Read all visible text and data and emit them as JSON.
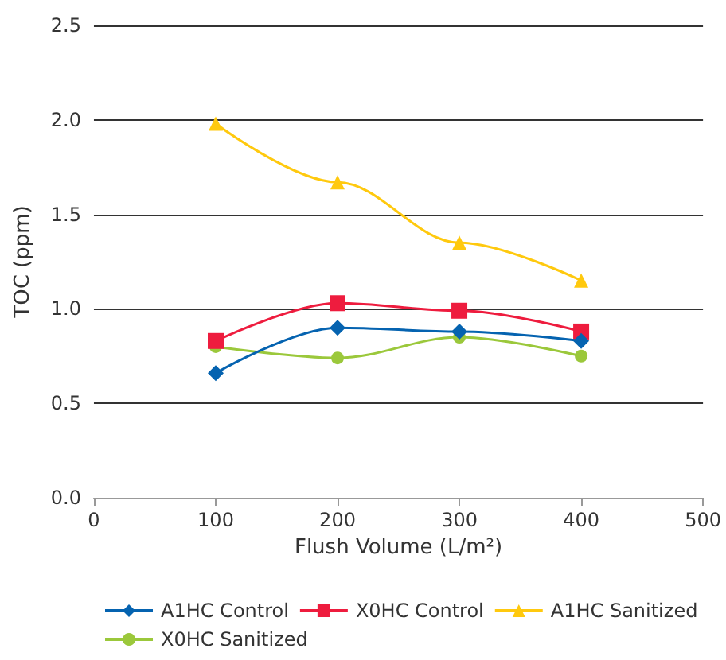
{
  "chart_data": {
    "type": "line",
    "xlabel": "Flush Volume (L/m²)",
    "ylabel": "TOC (ppm)",
    "x": [
      100,
      200,
      300,
      400
    ],
    "xlim": [
      0,
      500
    ],
    "xticks": [
      0,
      100,
      200,
      300,
      400,
      500
    ],
    "ylim": [
      0,
      2.5
    ],
    "yticks": [
      {
        "value": 0,
        "label": "0.0"
      },
      {
        "value": 0.5,
        "label": "0.5"
      },
      {
        "value": 1,
        "label": "1.0"
      },
      {
        "value": 1.5,
        "label": "1.5"
      },
      {
        "value": 2,
        "label": "2.0"
      },
      {
        "value": 2.5,
        "label": "2.5"
      }
    ],
    "grid": "y",
    "legend": "bottom",
    "series": [
      {
        "name": "A1HC Control",
        "color": "#0563b0",
        "marker": "diamond",
        "values": [
          0.66,
          0.9,
          0.88,
          0.83
        ]
      },
      {
        "name": "X0HC Control",
        "color": "#ee1c3e",
        "marker": "square",
        "values": [
          0.83,
          1.03,
          0.99,
          0.88
        ]
      },
      {
        "name": "A1HC Sanitized",
        "color": "#ffc90e",
        "marker": "triangle",
        "values": [
          1.98,
          1.67,
          1.35,
          1.15
        ]
      },
      {
        "name": "X0HC Sanitized",
        "color": "#9bc83b",
        "marker": "circle",
        "values": [
          0.8,
          0.74,
          0.85,
          0.75
        ]
      }
    ]
  }
}
